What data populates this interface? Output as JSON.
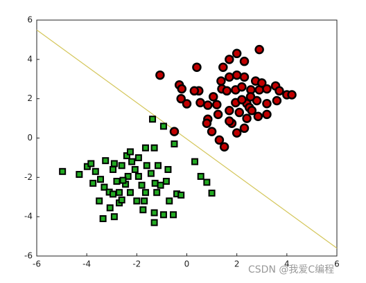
{
  "chart_data": {
    "type": "scatter",
    "xlim": [
      -6,
      6
    ],
    "ylim": [
      -6,
      6
    ],
    "xticks": [
      -6,
      -4,
      -2,
      0,
      2,
      4,
      6
    ],
    "yticks": [
      -6,
      -4,
      -2,
      0,
      2,
      4,
      6
    ],
    "grid": false,
    "line": {
      "color": "#d4c65a",
      "x": [
        -6,
        6
      ],
      "y": [
        5.5,
        -5.6
      ]
    },
    "series": [
      {
        "marker": "circle",
        "color": "#c00000",
        "x": [
          -1.07,
          0.4,
          2.9,
          2.0,
          1.7,
          1.45,
          2.3,
          -0.3,
          -0.2,
          0.48,
          0.3,
          1.37,
          1.7,
          2.0,
          2.3,
          -0.23,
          0.0,
          0.54,
          0.84,
          1.06,
          1.4,
          1.6,
          1.95,
          2.2,
          2.56,
          2.9,
          3.2,
          3.55,
          3.7,
          4.0,
          4.2,
          3.6,
          3.2,
          2.8,
          2.4,
          1.95,
          1.7,
          2.1,
          2.5,
          2.85,
          3.2,
          0.84,
          0.8,
          1.25,
          1.8,
          2.3,
          2.0,
          1.7,
          1.3,
          1.5,
          -0.5,
          2.55,
          2.2,
          2.75,
          3.0,
          1.2,
          2.4,
          1.0,
          2.6
        ],
        "y": [
          3.2,
          3.6,
          4.5,
          4.3,
          4.0,
          3.6,
          3.9,
          2.7,
          2.5,
          2.4,
          2.4,
          2.9,
          3.1,
          3.2,
          3.1,
          2.0,
          1.74,
          1.8,
          1.67,
          2.1,
          2.5,
          2.4,
          2.45,
          2.6,
          2.45,
          2.45,
          2.5,
          2.65,
          2.4,
          2.2,
          2.2,
          1.9,
          1.75,
          1.9,
          1.75,
          1.8,
          1.4,
          1.3,
          1.55,
          1.1,
          1.2,
          0.96,
          0.75,
          1.2,
          0.75,
          0.5,
          0.26,
          0.86,
          -0.1,
          -0.45,
          0.33,
          2.1,
          1.95,
          2.9,
          2.8,
          1.7,
          1.0,
          0.33,
          1.4
        ]
      },
      {
        "marker": "square",
        "color": "#22aa22",
        "x": [
          -4.97,
          -4.3,
          -3.98,
          -3.83,
          -3.75,
          -3.65,
          -3.45,
          -3.25,
          -3.3,
          -3.1,
          -2.95,
          -3.5,
          -3.35,
          -3.07,
          -2.9,
          -2.7,
          -2.6,
          -2.7,
          -2.8,
          -2.95,
          -2.9,
          -2.6,
          -2.4,
          -2.26,
          -2.2,
          -2.07,
          -1.93,
          -1.8,
          -1.65,
          -1.7,
          -1.75,
          -2.0,
          -2.26,
          -2.45,
          -2.35,
          -1.65,
          -1.37,
          -1.3,
          -1.6,
          -1.43,
          -1.27,
          -1.3,
          -1.3,
          -1.2,
          -1.05,
          -0.93,
          -0.82,
          -0.75,
          -0.7,
          -0.54,
          -0.5,
          -0.4,
          -0.23,
          0.32,
          0.56,
          0.8,
          1.0,
          -1.15,
          -1.93,
          -2.55,
          -0.93
        ],
        "y": [
          -1.7,
          -1.85,
          -1.45,
          -1.3,
          -2.3,
          -1.7,
          -2.1,
          -1.15,
          -2.5,
          -2.75,
          -2.85,
          -3.2,
          -4.1,
          -3.55,
          -4.0,
          -3.3,
          -3.15,
          -2.77,
          -2.2,
          -1.6,
          -1.3,
          -1.4,
          -0.9,
          -0.7,
          -1.2,
          -1.6,
          -1.95,
          -2.4,
          -2.77,
          -3.2,
          -3.65,
          -3.2,
          -2.77,
          -2.35,
          -1.95,
          -0.5,
          0.96,
          -0.5,
          -1.4,
          -1.8,
          -2.3,
          -3.8,
          -4.3,
          -2.77,
          -2.4,
          0.6,
          -2.2,
          -1.6,
          -3.2,
          -3.9,
          -0.3,
          -2.84,
          -2.9,
          -1.2,
          -1.95,
          -2.25,
          -2.8,
          -1.4,
          -1.0,
          -2.15,
          -3.9
        ]
      }
    ]
  },
  "watermark": "CSDN @我爱C编程"
}
